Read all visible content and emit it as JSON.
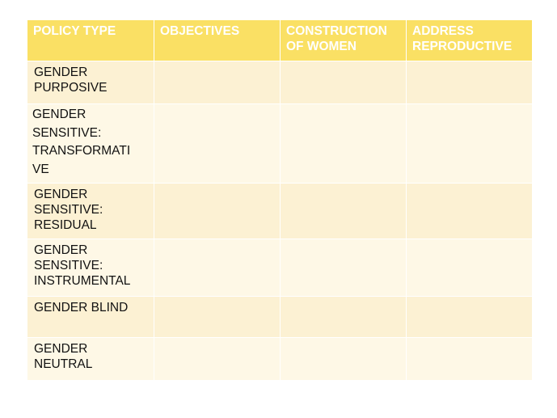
{
  "table": {
    "headers": [
      {
        "line1": "POLICY TYPE",
        "line2": ""
      },
      {
        "line1": "OBJECTIVES",
        "line2": ""
      },
      {
        "line1": "CONSTRUCTION",
        "line2": "OF WOMEN"
      },
      {
        "line1": "ADDRESS",
        "line2": "REPRODUCTIVE"
      }
    ],
    "rows": [
      {
        "lines": [
          "GENDER",
          "PURPOSIVE",
          "",
          ""
        ],
        "cells": [
          "",
          "",
          ""
        ]
      },
      {
        "lines": [
          "GENDER",
          "SENSITIVE:",
          "TRANSFORMATI",
          "VE"
        ],
        "cells": [
          "",
          "",
          ""
        ]
      },
      {
        "lines": [
          "GENDER",
          "SENSITIVE:",
          "RESIDUAL",
          ""
        ],
        "cells": [
          "",
          "",
          ""
        ]
      },
      {
        "lines": [
          "GENDER",
          "SENSITIVE:",
          "INSTRUMENTAL",
          ""
        ],
        "cells": [
          "",
          "",
          ""
        ]
      },
      {
        "lines": [
          "GENDER BLIND",
          "",
          "",
          ""
        ],
        "cells": [
          "",
          "",
          ""
        ]
      },
      {
        "lines": [
          "GENDER",
          "NEUTRAL",
          "",
          ""
        ],
        "cells": [
          "",
          "",
          ""
        ]
      }
    ]
  },
  "colors": {
    "header_bg": "#fae064",
    "row_dark_bg": "#fcf1d3",
    "row_light_bg": "#fef8e6",
    "header_text": "#ffffff",
    "body_text": "#111111"
  }
}
